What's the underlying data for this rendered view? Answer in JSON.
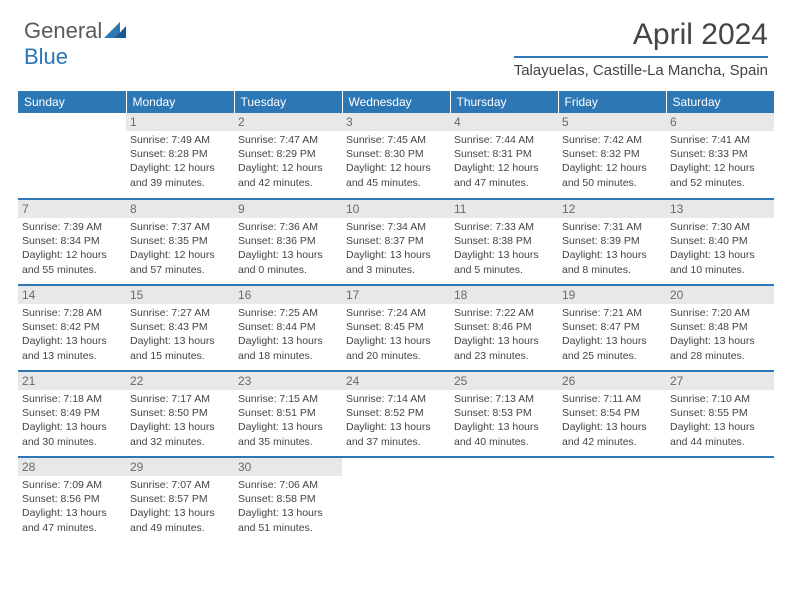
{
  "brand": {
    "part1": "General",
    "part2": "Blue"
  },
  "title": "April 2024",
  "location": "Talayuelas, Castille-La Mancha, Spain",
  "colors": {
    "accent": "#2e77b5",
    "header_bg": "#2e77b5",
    "daynum_bg": "#e8e8e8",
    "text": "#444444",
    "background": "#ffffff"
  },
  "fonts": {
    "title_size": 30,
    "location_size": 15,
    "th_size": 12,
    "cell_size": 10.5
  },
  "weekdays": [
    "Sunday",
    "Monday",
    "Tuesday",
    "Wednesday",
    "Thursday",
    "Friday",
    "Saturday"
  ],
  "weeks": [
    [
      null,
      {
        "n": "1",
        "sr": "7:49 AM",
        "ss": "8:28 PM",
        "dl": "12 hours and 39 minutes."
      },
      {
        "n": "2",
        "sr": "7:47 AM",
        "ss": "8:29 PM",
        "dl": "12 hours and 42 minutes."
      },
      {
        "n": "3",
        "sr": "7:45 AM",
        "ss": "8:30 PM",
        "dl": "12 hours and 45 minutes."
      },
      {
        "n": "4",
        "sr": "7:44 AM",
        "ss": "8:31 PM",
        "dl": "12 hours and 47 minutes."
      },
      {
        "n": "5",
        "sr": "7:42 AM",
        "ss": "8:32 PM",
        "dl": "12 hours and 50 minutes."
      },
      {
        "n": "6",
        "sr": "7:41 AM",
        "ss": "8:33 PM",
        "dl": "12 hours and 52 minutes."
      }
    ],
    [
      {
        "n": "7",
        "sr": "7:39 AM",
        "ss": "8:34 PM",
        "dl": "12 hours and 55 minutes."
      },
      {
        "n": "8",
        "sr": "7:37 AM",
        "ss": "8:35 PM",
        "dl": "12 hours and 57 minutes."
      },
      {
        "n": "9",
        "sr": "7:36 AM",
        "ss": "8:36 PM",
        "dl": "13 hours and 0 minutes."
      },
      {
        "n": "10",
        "sr": "7:34 AM",
        "ss": "8:37 PM",
        "dl": "13 hours and 3 minutes."
      },
      {
        "n": "11",
        "sr": "7:33 AM",
        "ss": "8:38 PM",
        "dl": "13 hours and 5 minutes."
      },
      {
        "n": "12",
        "sr": "7:31 AM",
        "ss": "8:39 PM",
        "dl": "13 hours and 8 minutes."
      },
      {
        "n": "13",
        "sr": "7:30 AM",
        "ss": "8:40 PM",
        "dl": "13 hours and 10 minutes."
      }
    ],
    [
      {
        "n": "14",
        "sr": "7:28 AM",
        "ss": "8:42 PM",
        "dl": "13 hours and 13 minutes."
      },
      {
        "n": "15",
        "sr": "7:27 AM",
        "ss": "8:43 PM",
        "dl": "13 hours and 15 minutes."
      },
      {
        "n": "16",
        "sr": "7:25 AM",
        "ss": "8:44 PM",
        "dl": "13 hours and 18 minutes."
      },
      {
        "n": "17",
        "sr": "7:24 AM",
        "ss": "8:45 PM",
        "dl": "13 hours and 20 minutes."
      },
      {
        "n": "18",
        "sr": "7:22 AM",
        "ss": "8:46 PM",
        "dl": "13 hours and 23 minutes."
      },
      {
        "n": "19",
        "sr": "7:21 AM",
        "ss": "8:47 PM",
        "dl": "13 hours and 25 minutes."
      },
      {
        "n": "20",
        "sr": "7:20 AM",
        "ss": "8:48 PM",
        "dl": "13 hours and 28 minutes."
      }
    ],
    [
      {
        "n": "21",
        "sr": "7:18 AM",
        "ss": "8:49 PM",
        "dl": "13 hours and 30 minutes."
      },
      {
        "n": "22",
        "sr": "7:17 AM",
        "ss": "8:50 PM",
        "dl": "13 hours and 32 minutes."
      },
      {
        "n": "23",
        "sr": "7:15 AM",
        "ss": "8:51 PM",
        "dl": "13 hours and 35 minutes."
      },
      {
        "n": "24",
        "sr": "7:14 AM",
        "ss": "8:52 PM",
        "dl": "13 hours and 37 minutes."
      },
      {
        "n": "25",
        "sr": "7:13 AM",
        "ss": "8:53 PM",
        "dl": "13 hours and 40 minutes."
      },
      {
        "n": "26",
        "sr": "7:11 AM",
        "ss": "8:54 PM",
        "dl": "13 hours and 42 minutes."
      },
      {
        "n": "27",
        "sr": "7:10 AM",
        "ss": "8:55 PM",
        "dl": "13 hours and 44 minutes."
      }
    ],
    [
      {
        "n": "28",
        "sr": "7:09 AM",
        "ss": "8:56 PM",
        "dl": "13 hours and 47 minutes."
      },
      {
        "n": "29",
        "sr": "7:07 AM",
        "ss": "8:57 PM",
        "dl": "13 hours and 49 minutes."
      },
      {
        "n": "30",
        "sr": "7:06 AM",
        "ss": "8:58 PM",
        "dl": "13 hours and 51 minutes."
      },
      null,
      null,
      null,
      null
    ]
  ],
  "labels": {
    "sunrise": "Sunrise:",
    "sunset": "Sunset:",
    "daylight": "Daylight:"
  }
}
